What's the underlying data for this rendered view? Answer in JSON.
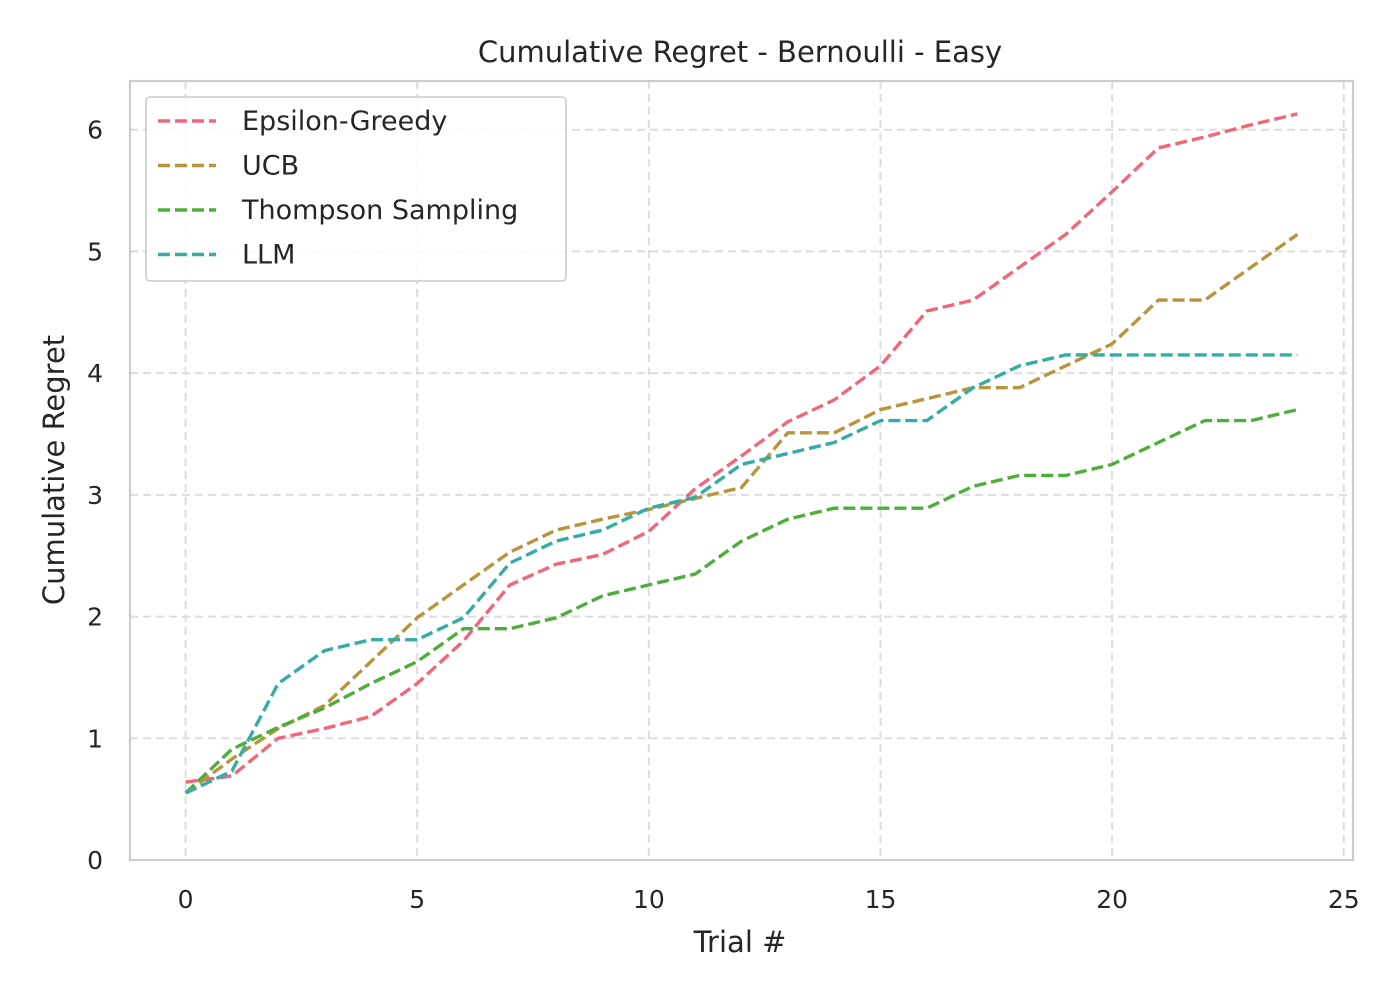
{
  "chart_data": {
    "type": "line",
    "title": "Cumulative Regret - Bernoulli - Easy",
    "xlabel": "Trial #",
    "ylabel": "Cumulative Regret",
    "xlim": [
      -1.2,
      25.2
    ],
    "ylim": [
      0,
      6.4
    ],
    "xticks": [
      0,
      5,
      10,
      15,
      20,
      25
    ],
    "yticks": [
      0,
      1,
      2,
      3,
      4,
      5,
      6
    ],
    "grid": true,
    "line_style": "dashed",
    "legend_position": "upper-left",
    "x": [
      0,
      1,
      2,
      3,
      4,
      5,
      6,
      7,
      8,
      9,
      10,
      11,
      12,
      13,
      14,
      15,
      16,
      17,
      18,
      19,
      20,
      21,
      22,
      23,
      24
    ],
    "series": [
      {
        "name": "Epsilon-Greedy",
        "color": "#f0667b",
        "values": [
          0.64,
          0.69,
          1.0,
          1.08,
          1.18,
          1.45,
          1.8,
          2.26,
          2.43,
          2.51,
          2.7,
          3.05,
          3.32,
          3.6,
          3.78,
          4.06,
          4.51,
          4.6,
          4.87,
          5.14,
          5.49,
          5.85,
          5.94,
          6.04,
          6.13
        ]
      },
      {
        "name": "UCB",
        "color": "#b8953c",
        "values": [
          0.55,
          0.83,
          1.08,
          1.27,
          1.63,
          1.99,
          2.26,
          2.53,
          2.71,
          2.8,
          2.88,
          2.97,
          3.06,
          3.51,
          3.51,
          3.7,
          3.79,
          3.88,
          3.88,
          4.06,
          4.24,
          4.6,
          4.6,
          4.87,
          5.14
        ]
      },
      {
        "name": "Thompson Sampling",
        "color": "#4daf3a",
        "values": [
          0.55,
          0.91,
          1.09,
          1.25,
          1.45,
          1.63,
          1.9,
          1.9,
          1.99,
          2.17,
          2.26,
          2.35,
          2.62,
          2.8,
          2.89,
          2.89,
          2.89,
          3.07,
          3.16,
          3.16,
          3.25,
          3.43,
          3.61,
          3.61,
          3.7
        ]
      },
      {
        "name": "LLM",
        "color": "#36ada4",
        "values": [
          0.55,
          0.73,
          1.45,
          1.72,
          1.81,
          1.81,
          1.99,
          2.44,
          2.62,
          2.71,
          2.89,
          2.98,
          3.25,
          3.34,
          3.43,
          3.61,
          3.61,
          3.88,
          4.06,
          4.15,
          4.15,
          4.15,
          4.15,
          4.15,
          4.15
        ]
      }
    ]
  }
}
